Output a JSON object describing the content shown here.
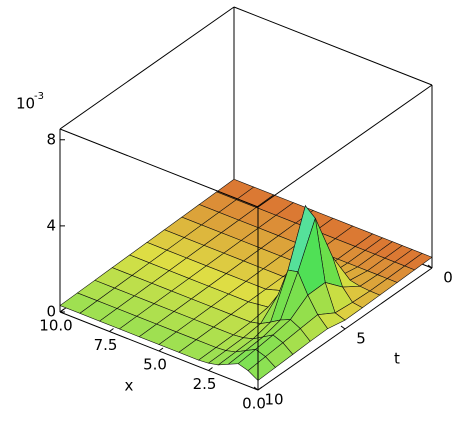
{
  "chart_data": {
    "type": "surface3d",
    "x_label": "x",
    "t_label": "t",
    "z_multiplier": {
      "base": "10",
      "exponent": "-3"
    },
    "xlim": [
      0,
      10
    ],
    "tlim": [
      0,
      10
    ],
    "zlim": [
      0,
      8.5
    ],
    "xticks": [
      {
        "value": 10,
        "label": "10.0"
      },
      {
        "value": 7.5,
        "label": "7.5"
      },
      {
        "value": 5,
        "label": "5.0"
      },
      {
        "value": 2.5,
        "label": "2.5"
      },
      {
        "value": 0,
        "label": "0.0"
      }
    ],
    "tticks": [
      0,
      5,
      10
    ],
    "zticks": [
      0,
      4,
      8
    ],
    "x": [
      0,
      0.5,
      1,
      1.5,
      2,
      2.5,
      3,
      4,
      5,
      6,
      7,
      8,
      9,
      10
    ],
    "t": [
      0,
      1,
      2,
      3,
      4,
      5,
      6,
      7,
      8,
      9,
      10
    ],
    "z": [
      [
        0.5,
        0.5,
        0.5,
        0.5,
        0.5,
        0.5,
        0.5,
        0.5,
        0.5,
        0.5,
        0.5,
        0.5,
        0.5,
        0.5
      ],
      [
        0.48,
        0.48,
        0.48,
        0.48,
        0.48,
        0.48,
        0.48,
        0.48,
        0.48,
        0.48,
        0.48,
        0.48,
        0.48,
        0.48
      ],
      [
        0.46,
        0.46,
        0.46,
        0.46,
        0.46,
        0.46,
        0.46,
        0.46,
        0.46,
        0.46,
        0.46,
        0.46,
        0.46,
        0.46
      ],
      [
        0.44,
        0.45,
        0.49,
        0.59,
        0.61,
        0.51,
        0.45,
        0.44,
        0.44,
        0.44,
        0.44,
        0.44,
        0.44,
        0.44
      ],
      [
        0.42,
        0.49,
        1.02,
        2.22,
        2.42,
        1.24,
        0.54,
        0.42,
        0.42,
        0.42,
        0.42,
        0.42,
        0.42,
        0.42
      ],
      [
        0.41,
        0.57,
        1.8,
        4.6,
        5.0,
        2.3,
        0.68,
        0.4,
        0.4,
        0.4,
        0.4,
        0.4,
        0.4,
        0.4
      ],
      [
        0.58,
        1.05,
        1.78,
        2.68,
        2.58,
        1.25,
        0.5,
        0.38,
        0.38,
        0.38,
        0.38,
        0.38,
        0.38,
        0.38
      ],
      [
        0.56,
        0.97,
        1.21,
        1.01,
        0.73,
        0.48,
        0.37,
        0.36,
        0.36,
        0.36,
        0.36,
        0.36,
        0.36,
        0.36
      ],
      [
        0.52,
        0.88,
        1.06,
        0.79,
        0.52,
        0.39,
        0.34,
        0.34,
        0.34,
        0.34,
        0.34,
        0.34,
        0.34,
        0.34
      ],
      [
        0.48,
        0.8,
        0.96,
        0.72,
        0.48,
        0.36,
        0.32,
        0.32,
        0.32,
        0.32,
        0.32,
        0.32,
        0.32,
        0.32
      ],
      [
        0.44,
        0.72,
        0.86,
        0.65,
        0.44,
        0.34,
        0.3,
        0.3,
        0.3,
        0.3,
        0.3,
        0.3,
        0.3,
        0.3
      ]
    ]
  }
}
